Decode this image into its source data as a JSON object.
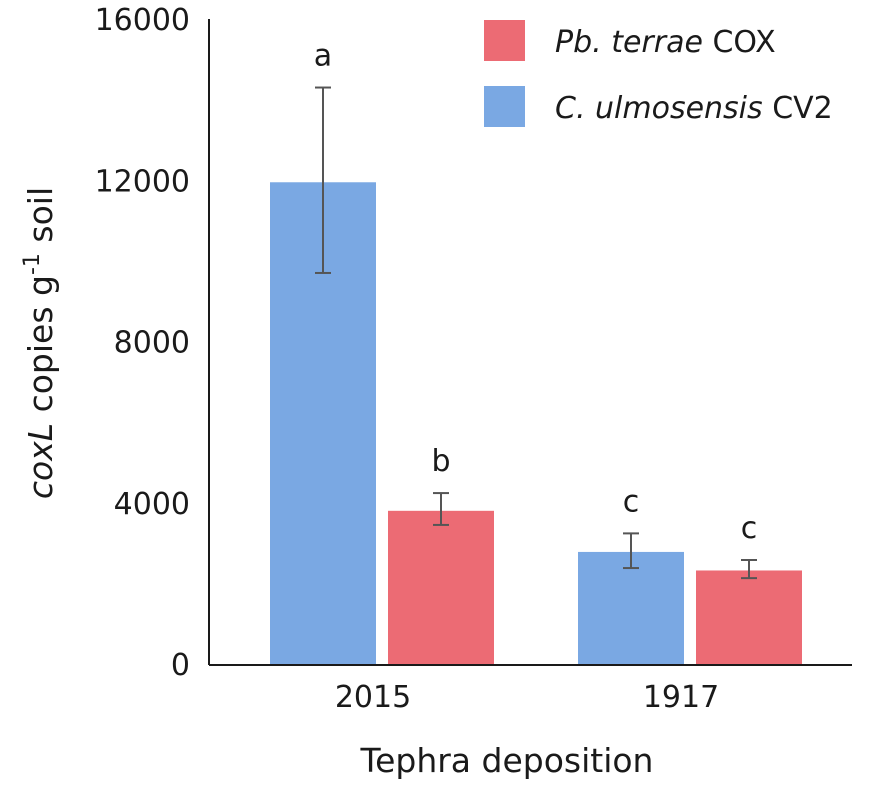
{
  "chart_data": {
    "type": "bar",
    "categories": [
      "2015",
      "1917"
    ],
    "series": [
      {
        "name_italic": "C. ulmosensis",
        "name_plain": " CV2",
        "color": "#7aa8e3",
        "values": [
          11950,
          2780
        ],
        "error_low": [
          9700,
          2380
        ],
        "error_high": [
          14300,
          3240
        ],
        "significance": [
          "a",
          "c"
        ]
      },
      {
        "name_italic": "Pb. terrae",
        "name_plain": " COX",
        "color": "#ec6b74",
        "values": [
          3800,
          2320
        ],
        "error_low": [
          3450,
          2130
        ],
        "error_high": [
          4240,
          2580
        ],
        "significance": [
          "b",
          "c"
        ]
      }
    ],
    "xlabel": "Tephra deposition",
    "ylabel": {
      "italic": "coxL",
      "plain": " copies g",
      "superscript": "-1",
      "suffix": " soil"
    },
    "ylim": [
      0,
      16000
    ],
    "yticks": [
      "0",
      "4000",
      "8000",
      "12000",
      "16000"
    ],
    "legend_position": "top-right",
    "grid": false
  }
}
